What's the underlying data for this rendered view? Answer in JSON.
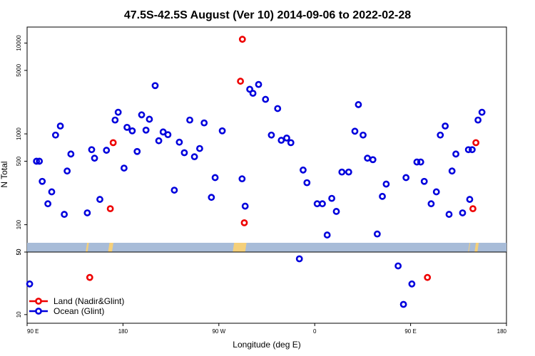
{
  "chart_data": {
    "type": "scatter",
    "title": "47.5S-42.5S August (Ver 10)   2014-09-06 to 2022-02-28",
    "xlabel": "Longitude (deg E)",
    "ylabel": "N Total",
    "x_ticks": [
      {
        "value": 90,
        "label": "90 E"
      },
      {
        "value": 180,
        "label": "180"
      },
      {
        "value": 270,
        "label": "90 W"
      },
      {
        "value": 360,
        "label": "0"
      },
      {
        "value": 450,
        "label": "90 E"
      },
      {
        "value": 540,
        "label": "180"
      }
    ],
    "xlim": [
      90,
      540
    ],
    "upper_panel": {
      "scale": "log",
      "ylim": [
        50,
        15000
      ],
      "y_ticks": [
        {
          "value": 50,
          "label": "50"
        },
        {
          "value": 100,
          "label": "100"
        },
        {
          "value": 500,
          "label": "500"
        },
        {
          "value": 1000,
          "label": "1000"
        },
        {
          "value": 5000,
          "label": "5000"
        },
        {
          "value": 10000,
          "label": "10000"
        }
      ]
    },
    "lower_panel": {
      "scale": "log",
      "ylim": [
        8,
        50
      ],
      "y_ticks": [
        {
          "value": 10,
          "label": "10"
        },
        {
          "value": 50,
          "label": "50"
        }
      ]
    },
    "colors": {
      "land": "#ee0000",
      "ocean": "#0000dd",
      "band_ocean": "#a8bcd8",
      "band_land": "#f5d07a"
    },
    "legend": {
      "position": "bottom-left"
    },
    "series": [
      {
        "name": "Land (Nadir&Glint)",
        "color": "#ee0000",
        "points": [
          [
            148.8,
            26
          ],
          [
            168.1,
            150
          ],
          [
            170.8,
            800
          ],
          [
            290.3,
            3800
          ],
          [
            292.1,
            11000
          ],
          [
            293.9,
            105
          ],
          [
            465.8,
            26
          ],
          [
            508.5,
            150
          ],
          [
            511.3,
            800
          ]
        ]
      },
      {
        "name": "Ocean (Glint)",
        "color": "#0000dd",
        "points": [
          [
            92.4,
            22
          ],
          [
            98.8,
            500
          ],
          [
            101.5,
            500
          ],
          [
            104.2,
            300
          ],
          [
            109.5,
            170
          ],
          [
            113.1,
            230
          ],
          [
            116.7,
            970
          ],
          [
            121.2,
            1220
          ],
          [
            124.9,
            130
          ],
          [
            127.6,
            390
          ],
          [
            131.1,
            600
          ],
          [
            146.5,
            135
          ],
          [
            150.6,
            670
          ],
          [
            153.3,
            540
          ],
          [
            158.3,
            190
          ],
          [
            164.5,
            660
          ],
          [
            172.6,
            1420
          ],
          [
            175.5,
            1730
          ],
          [
            181.0,
            420
          ],
          [
            183.8,
            1180
          ],
          [
            188.7,
            1080
          ],
          [
            193.3,
            640
          ],
          [
            197.5,
            1620
          ],
          [
            201.6,
            1100
          ],
          [
            204.8,
            1450
          ],
          [
            210.2,
            3400
          ],
          [
            213.6,
            840
          ],
          [
            217.7,
            1050
          ],
          [
            222.2,
            980
          ],
          [
            228.2,
            240
          ],
          [
            232.9,
            810
          ],
          [
            237.6,
            620
          ],
          [
            242.7,
            1420
          ],
          [
            247.1,
            560
          ],
          [
            252.0,
            690
          ],
          [
            256.2,
            1320
          ],
          [
            263.0,
            200
          ],
          [
            266.5,
            330
          ],
          [
            273.2,
            1080
          ],
          [
            291.8,
            320
          ],
          [
            294.7,
            160
          ],
          [
            299.0,
            3100
          ],
          [
            302.0,
            2800
          ],
          [
            307.3,
            3500
          ],
          [
            313.8,
            2400
          ],
          [
            319.3,
            970
          ],
          [
            325.2,
            1900
          ],
          [
            328.6,
            850
          ],
          [
            333.7,
            900
          ],
          [
            337.6,
            800
          ],
          [
            345.6,
            42
          ],
          [
            349.1,
            400
          ],
          [
            352.7,
            290
          ],
          [
            362.3,
            170
          ],
          [
            367.2,
            170
          ],
          [
            371.7,
            77
          ],
          [
            376.0,
            195
          ],
          [
            380.3,
            140
          ],
          [
            385.5,
            380
          ],
          [
            391.9,
            380
          ],
          [
            397.7,
            1070
          ],
          [
            401.0,
            2100
          ],
          [
            405.4,
            970
          ],
          [
            409.5,
            540
          ],
          [
            414.6,
            520
          ],
          [
            418.7,
            79
          ],
          [
            423.5,
            205
          ],
          [
            427.1,
            280
          ],
          [
            438.3,
            35
          ],
          [
            443.3,
            13
          ],
          [
            445.7,
            330
          ],
          [
            451.2,
            22
          ],
          [
            455.9,
            490
          ],
          [
            459.5,
            490
          ],
          [
            462.8,
            300
          ],
          [
            469.3,
            170
          ],
          [
            474.2,
            230
          ],
          [
            477.9,
            970
          ],
          [
            482.5,
            1220
          ],
          [
            486.1,
            130
          ],
          [
            488.9,
            390
          ],
          [
            492.5,
            600
          ],
          [
            498.8,
            135
          ],
          [
            504.3,
            670
          ],
          [
            505.5,
            190
          ],
          [
            507.8,
            670
          ],
          [
            513.3,
            1420
          ],
          [
            517.0,
            1730
          ]
        ]
      }
    ],
    "surface_band": {
      "land_segments": [
        [
          145,
          148
        ],
        [
          166,
          171
        ],
        [
          283,
          296
        ],
        [
          504,
          506
        ],
        [
          510,
          514
        ]
      ]
    }
  }
}
